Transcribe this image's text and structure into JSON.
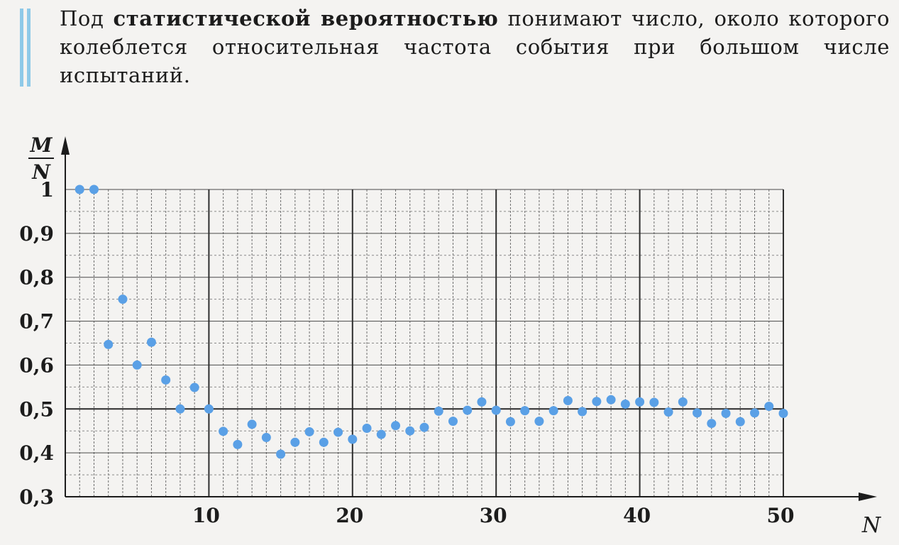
{
  "definition": {
    "prefix": "Под ",
    "term": "статистической вероятностью",
    "rest": " понимают число, около которого колеблется относительная частота события при большом числе испытаний."
  },
  "chart_data": {
    "type": "scatter",
    "ylabel_numerator": "M",
    "ylabel_denominator": "N",
    "xlabel": "N",
    "xlim": [
      0,
      50
    ],
    "ylim": [
      0.3,
      1.0
    ],
    "x_ticks": [
      "10",
      "20",
      "30",
      "40",
      "50"
    ],
    "y_ticks": [
      "0,3",
      "0,4",
      "0,5",
      "0,6",
      "0,7",
      "0,8",
      "0,9",
      "1"
    ],
    "reference_line": 0.5,
    "grid": true,
    "point_color": "#5aa0e6",
    "x": [
      1,
      2,
      3,
      4,
      5,
      6,
      7,
      8,
      9,
      10,
      11,
      12,
      13,
      14,
      15,
      16,
      17,
      18,
      19,
      20,
      21,
      22,
      23,
      24,
      25,
      26,
      27,
      28,
      29,
      30,
      31,
      32,
      33,
      34,
      35,
      36,
      37,
      38,
      39,
      40,
      41,
      42,
      43,
      44,
      45,
      46,
      47,
      48,
      49,
      50
    ],
    "y": [
      1.0,
      1.0,
      0.647,
      0.75,
      0.6,
      0.652,
      0.566,
      0.5,
      0.549,
      0.5,
      0.449,
      0.419,
      0.465,
      0.435,
      0.397,
      0.424,
      0.448,
      0.424,
      0.447,
      0.431,
      0.456,
      0.442,
      0.462,
      0.45,
      0.458,
      0.495,
      0.472,
      0.497,
      0.516,
      0.497,
      0.471,
      0.496,
      0.472,
      0.496,
      0.519,
      0.494,
      0.517,
      0.521,
      0.511,
      0.516,
      0.515,
      0.493,
      0.516,
      0.491,
      0.467,
      0.49,
      0.471,
      0.491,
      0.506,
      0.49
    ]
  }
}
